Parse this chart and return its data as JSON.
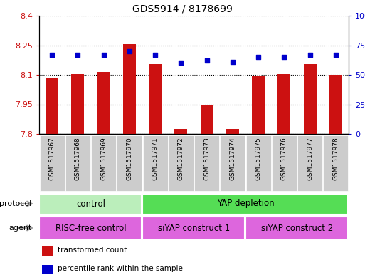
{
  "title": "GDS5914 / 8178699",
  "samples": [
    "GSM1517967",
    "GSM1517968",
    "GSM1517969",
    "GSM1517970",
    "GSM1517971",
    "GSM1517972",
    "GSM1517973",
    "GSM1517974",
    "GSM1517975",
    "GSM1517976",
    "GSM1517977",
    "GSM1517978"
  ],
  "bar_values": [
    8.085,
    8.105,
    8.115,
    8.255,
    8.155,
    7.825,
    7.945,
    7.825,
    8.095,
    8.105,
    8.155,
    8.1
  ],
  "dot_values": [
    67,
    67,
    67,
    70,
    67,
    60,
    62,
    61,
    65,
    65,
    67,
    67
  ],
  "ymin": 7.8,
  "ymax": 8.4,
  "yticks": [
    7.8,
    7.95,
    8.1,
    8.25,
    8.4
  ],
  "ytick_labels_left": [
    "7.8",
    "7.95",
    "8.1",
    "8.25",
    "8.4"
  ],
  "y2min": 0,
  "y2max": 100,
  "y2ticks": [
    0,
    25,
    50,
    75,
    100
  ],
  "y2tick_labels": [
    "0",
    "25",
    "50",
    "75",
    "100%"
  ],
  "bar_color": "#cc1111",
  "dot_color": "#0000cc",
  "grid_color": "#000000",
  "bg_color": "#ffffff",
  "plot_bg": "#ffffff",
  "tick_color_left": "#cc1111",
  "tick_color_right": "#0000cc",
  "protocol_labels": [
    "control",
    "YAP depletion"
  ],
  "protocol_span_starts": [
    0,
    4
  ],
  "protocol_span_ends": [
    4,
    12
  ],
  "protocol_color": "#bbeebb",
  "protocol_color2": "#55dd55",
  "agent_labels": [
    "RISC-free control",
    "siYAP construct 1",
    "siYAP construct 2"
  ],
  "agent_span_starts": [
    0,
    4,
    8
  ],
  "agent_span_ends": [
    4,
    8,
    12
  ],
  "agent_color": "#dd66dd",
  "legend_items": [
    "transformed count",
    "percentile rank within the sample"
  ],
  "legend_colors": [
    "#cc1111",
    "#0000cc"
  ],
  "protocol_label": "protocol",
  "agent_label": "agent",
  "bar_width": 0.5,
  "sample_box_color": "#cccccc",
  "arrow_color": "#999999"
}
